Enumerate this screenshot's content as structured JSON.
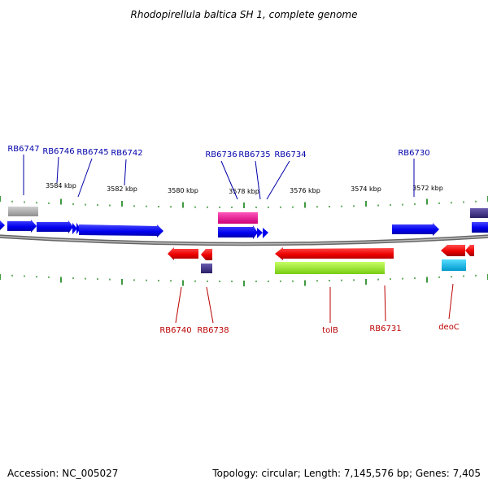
{
  "title": "Rhodopirellula baltica SH 1, complete genome",
  "footer": {
    "accession": "Accession: NC_005027",
    "summary": "Topology: circular; Length: 7,145,576 bp; Genes: 7,405"
  },
  "scale_labels": [
    "3584 kbp",
    "3582 kbp",
    "3580 kbp",
    "3578 kbp",
    "3576 kbp",
    "3574 kbp",
    "3572 kbp"
  ],
  "gene_labels_top": [
    "RB6747",
    "RB6746",
    "RB6745",
    "RB6742",
    "RB6736",
    "RB6735",
    "RB6734",
    "RB6730"
  ],
  "gene_labels_bottom": [
    "RB6740",
    "RB6738",
    "tolB",
    "RB6731",
    "deoC"
  ],
  "colors": {
    "forward_gene": "#0000ee",
    "reverse_gene": "#ee0000",
    "top_label": "#0000aa",
    "bottom_label": "#bb0000",
    "ticks": "#007700",
    "backbone": "#888888",
    "magenta_feature": "#ee1199",
    "green_feature": "#99ee22",
    "cyan_feature": "#00bbee",
    "purple_feature": "#443388",
    "grey_feature": "#aaaaaa"
  }
}
